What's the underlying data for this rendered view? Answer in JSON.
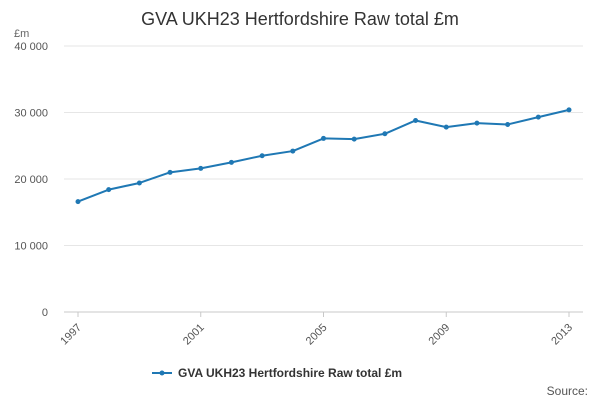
{
  "chart_data": {
    "type": "line",
    "title": "GVA UKH23 Hertfordshire Raw total £m",
    "y_unit_label": "£m",
    "xlabel": "",
    "ylabel": "",
    "x": [
      1997,
      1998,
      1999,
      2000,
      2001,
      2002,
      2003,
      2004,
      2005,
      2006,
      2007,
      2008,
      2009,
      2010,
      2011,
      2012,
      2013
    ],
    "x_tick_labels": [
      "1997",
      "2001",
      "2005",
      "2009",
      "2013"
    ],
    "y_tick_labels": [
      "0",
      "10 000",
      "20 000",
      "30 000",
      "40 000"
    ],
    "y_ticks": [
      0,
      10000,
      20000,
      30000,
      40000
    ],
    "ylim": [
      0,
      40000
    ],
    "xlim": [
      1997,
      2013
    ],
    "grid": true,
    "legend_position": "bottom",
    "series": [
      {
        "name": "GVA UKH23 Hertfordshire Raw total £m",
        "color": "#1f78b4",
        "values": [
          16600,
          18400,
          19400,
          21000,
          21600,
          22500,
          23500,
          24200,
          26100,
          26000,
          26800,
          28800,
          27800,
          28400,
          28200,
          29300,
          30400
        ]
      }
    ],
    "source_label": "Source:"
  }
}
